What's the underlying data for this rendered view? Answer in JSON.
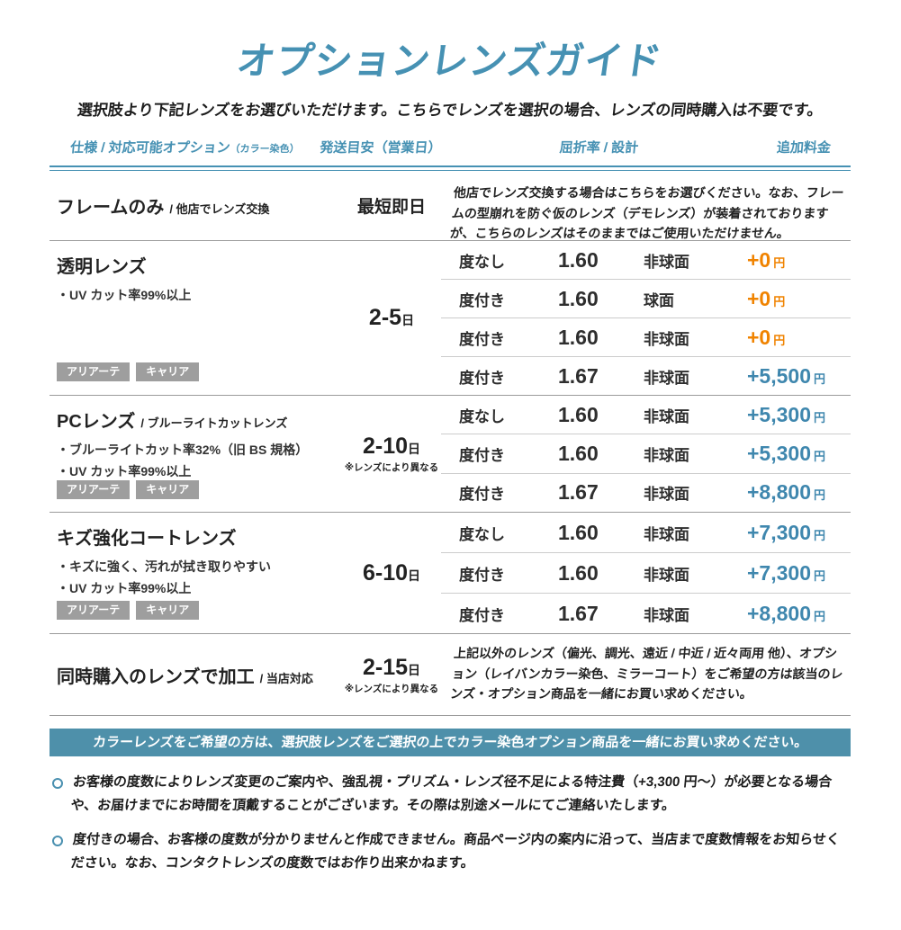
{
  "page": {
    "title": "オプションレンズガイド",
    "subtitle": "選択肢より下記レンズをお選びいただけます。こちらでレンズを選択の場合、レンズの同時購入は不要です。"
  },
  "colors": {
    "accent_teal": "#4691b3",
    "banner_teal": "#4e90aa",
    "price_blue": "#3f87ae",
    "price_orange": "#f08300",
    "badge_gray": "#9e9e9e"
  },
  "table": {
    "headers": {
      "spec": "仕様 / 対応可能オプション",
      "spec_sub": "（カラー染色）",
      "shipping": "発送目安（営業日）",
      "refraction": "屈折率 / 設計",
      "price": "追加料金"
    },
    "sections": [
      {
        "name": "フレームのみ",
        "suffix": "/ 他店でレンズ交換",
        "shipping": {
          "value": "最短即日",
          "unit": "",
          "note": ""
        },
        "description": "他店でレンズ交換する場合はこちらをお選びください。なお、フレームの型崩れを防ぐ仮のレンズ（デモレンズ）が装着されておりますが、こちらのレンズはそのままではご使用いただけません。"
      },
      {
        "name": "透明レンズ",
        "suffix": "",
        "features": [
          "・UV カット率99%以上"
        ],
        "badges": [
          "アリアーテ",
          "キャリア"
        ],
        "shipping": {
          "value": "2-5",
          "unit": "日",
          "note": ""
        },
        "rows": [
          {
            "type": "度なし",
            "index": "1.60",
            "design": "非球面",
            "price": "+0",
            "unit": "円",
            "price_color": "orange"
          },
          {
            "type": "度付き",
            "index": "1.60",
            "design": "球面",
            "price": "+0",
            "unit": "円",
            "price_color": "orange"
          },
          {
            "type": "度付き",
            "index": "1.60",
            "design": "非球面",
            "price": "+0",
            "unit": "円",
            "price_color": "orange"
          },
          {
            "type": "度付き",
            "index": "1.67",
            "design": "非球面",
            "price": "+5,500",
            "unit": "円",
            "price_color": "blue"
          }
        ]
      },
      {
        "name": "PCレンズ",
        "suffix": "/ ブルーライトカットレンズ",
        "features": [
          "・ブルーライトカット率32%（旧 BS 規格）",
          "・UV カット率99%以上"
        ],
        "badges": [
          "アリアーテ",
          "キャリア"
        ],
        "shipping": {
          "value": "2-10",
          "unit": "日",
          "note": "※レンズにより異なる"
        },
        "rows": [
          {
            "type": "度なし",
            "index": "1.60",
            "design": "非球面",
            "price": "+5,300",
            "unit": "円",
            "price_color": "blue"
          },
          {
            "type": "度付き",
            "index": "1.60",
            "design": "非球面",
            "price": "+5,300",
            "unit": "円",
            "price_color": "blue"
          },
          {
            "type": "度付き",
            "index": "1.67",
            "design": "非球面",
            "price": "+8,800",
            "unit": "円",
            "price_color": "blue"
          }
        ]
      },
      {
        "name": "キズ強化コートレンズ",
        "suffix": "",
        "features": [
          "・キズに強く、汚れが拭き取りやすい",
          "・UV カット率99%以上"
        ],
        "badges": [
          "アリアーテ",
          "キャリア"
        ],
        "shipping": {
          "value": "6-10",
          "unit": "日",
          "note": ""
        },
        "rows": [
          {
            "type": "度なし",
            "index": "1.60",
            "design": "非球面",
            "price": "+7,300",
            "unit": "円",
            "price_color": "blue"
          },
          {
            "type": "度付き",
            "index": "1.60",
            "design": "非球面",
            "price": "+7,300",
            "unit": "円",
            "price_color": "blue"
          },
          {
            "type": "度付き",
            "index": "1.67",
            "design": "非球面",
            "price": "+8,800",
            "unit": "円",
            "price_color": "blue"
          }
        ]
      },
      {
        "name": "同時購入のレンズで加工",
        "suffix": "/ 当店対応",
        "shipping": {
          "value": "2-15",
          "unit": "日",
          "note": "※レンズにより異なる"
        },
        "description": "上記以外のレンズ（偏光、調光、遠近 / 中近 / 近々両用 他）、オプション（レイバンカラー染色、ミラーコート）をご希望の方は該当のレンズ・オプション商品を一緒にお買い求めください。"
      }
    ]
  },
  "banner": {
    "text": "カラーレンズをご希望の方は、選択肢レンズをご選択の上でカラー染色オプション商品を一緒にお買い求めください。"
  },
  "footnotes": [
    "お客様の度数によりレンズ変更のご案内や、強乱視・プリズム・レンズ径不足による特注費（+3,300 円〜）が必要となる場合や、お届けまでにお時間を頂戴することがございます。その際は別途メールにてご連絡いたします。",
    "度付きの場合、お客様の度数が分かりませんと作成できません。商品ページ内の案内に沿って、当店まで度数情報をお知らせください。なお、コンタクトレンズの度数ではお作り出来かねます。"
  ]
}
